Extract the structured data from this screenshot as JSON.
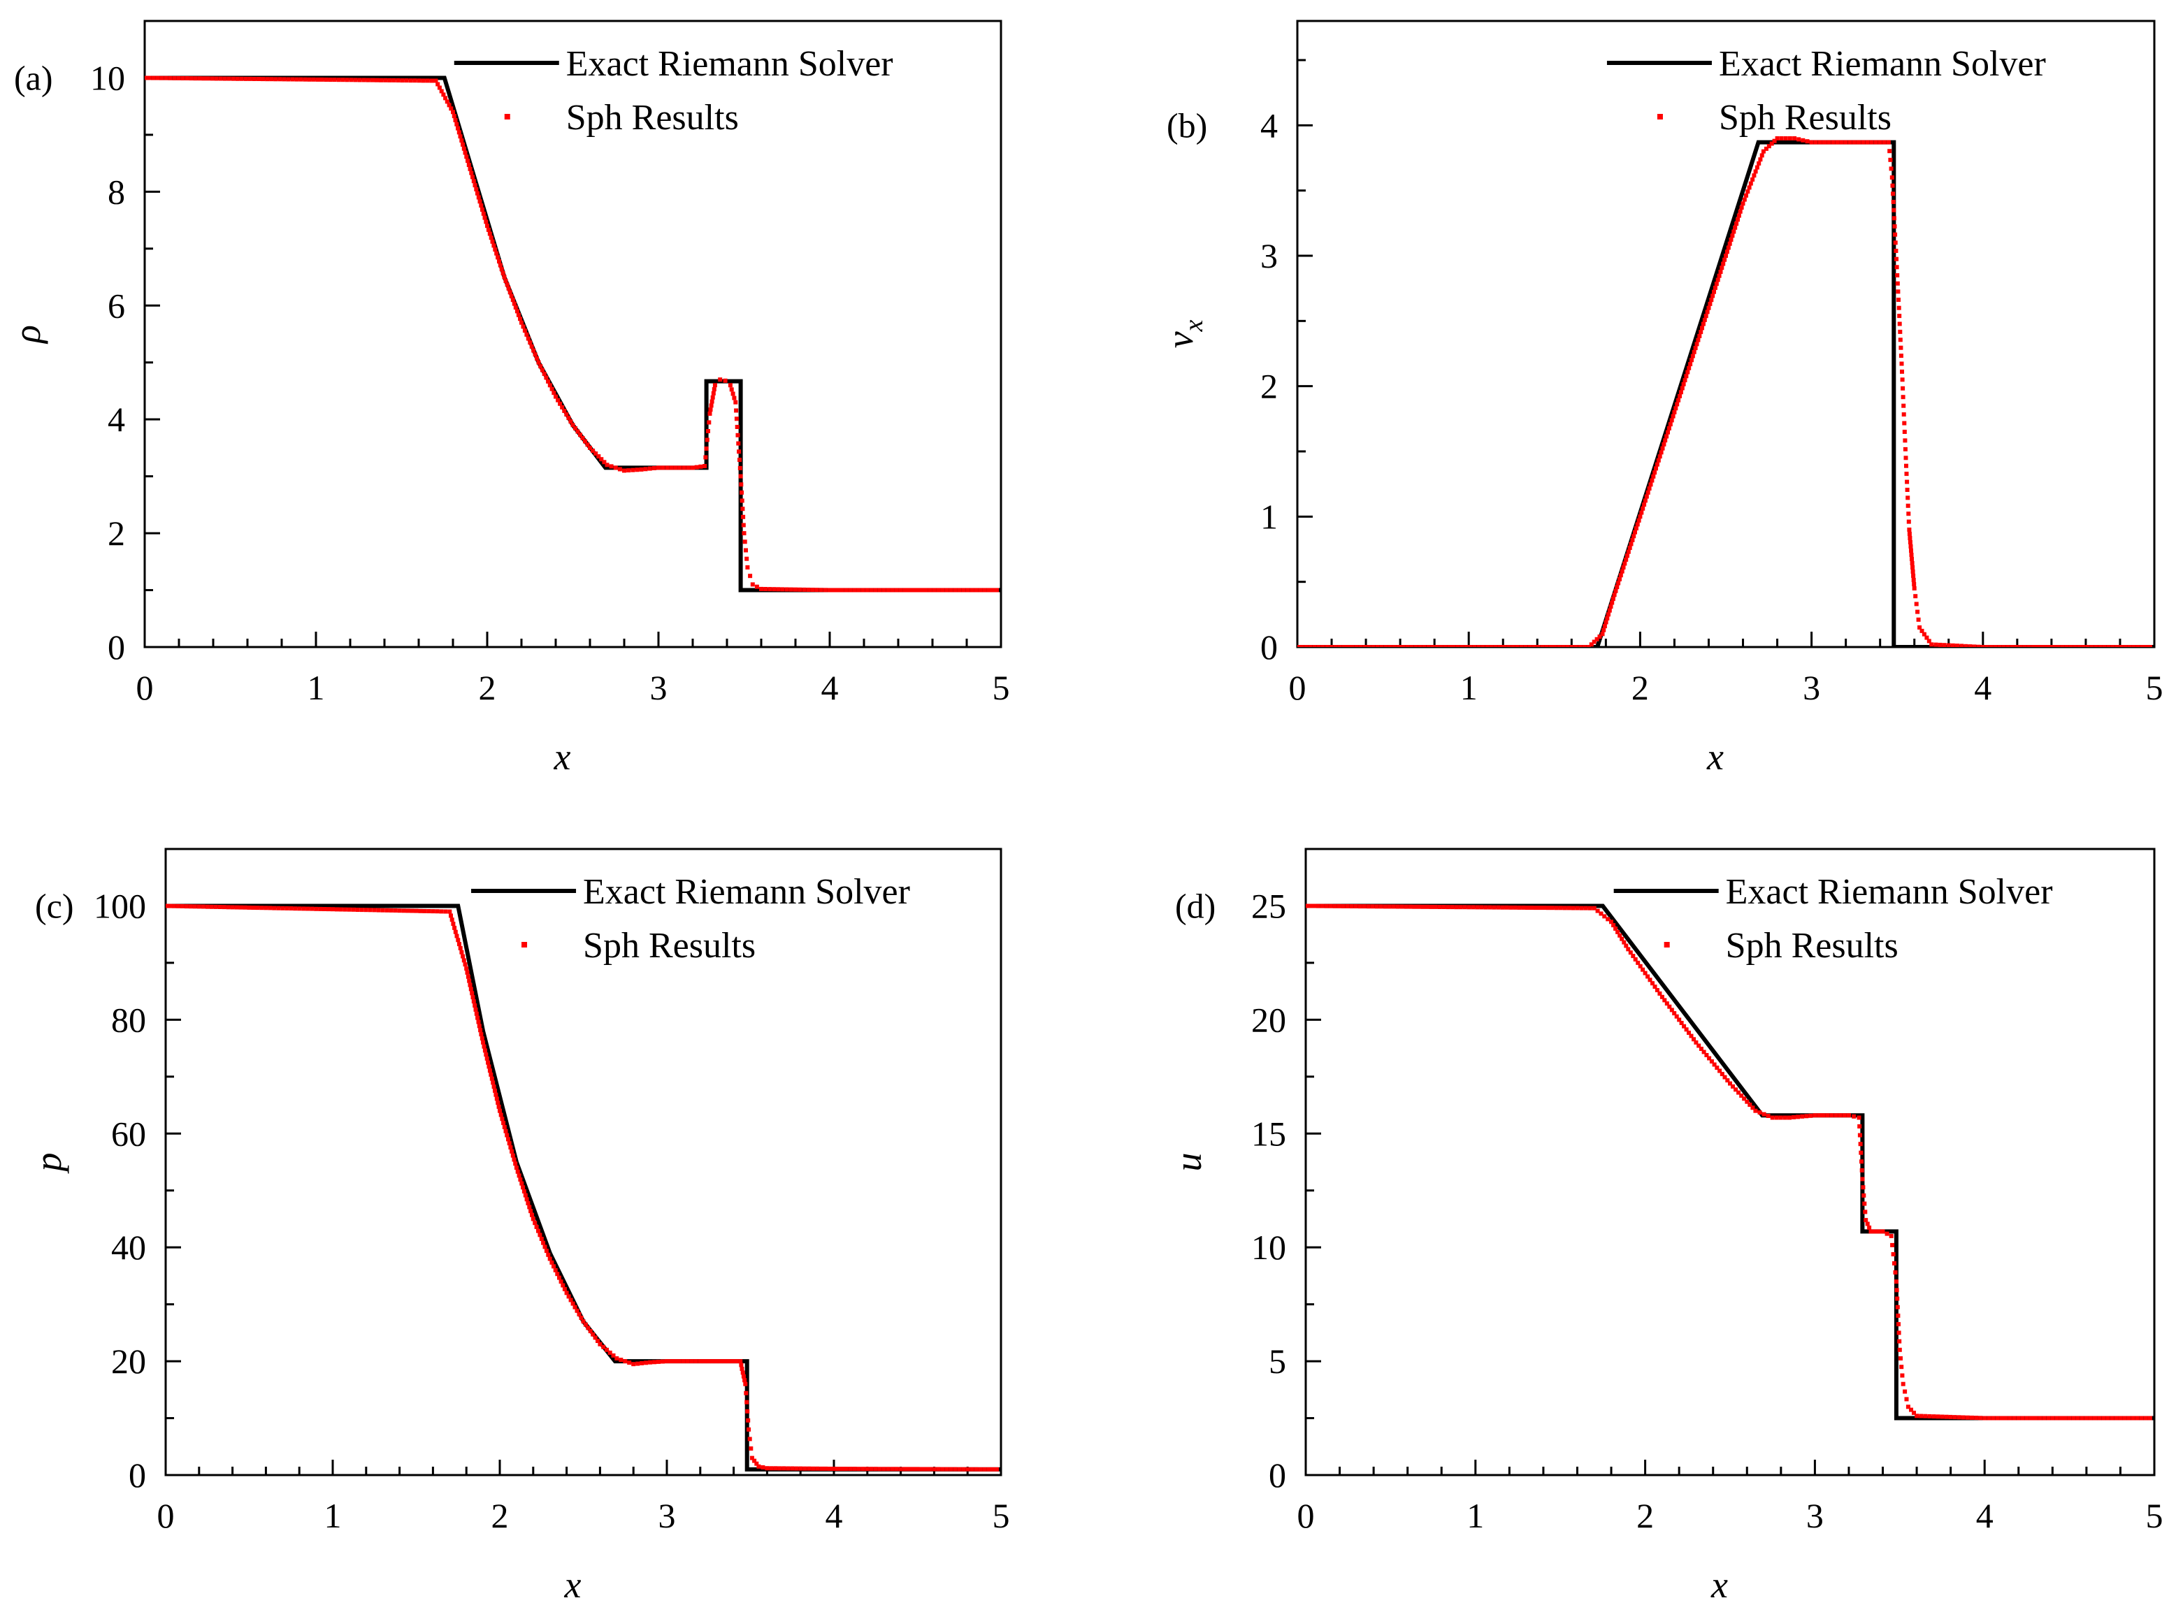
{
  "chart_data": [
    {
      "type": "line",
      "panel_label": "(a)",
      "xlabel": "x",
      "ylabel": "ρ",
      "ylabel_sub": "",
      "xlim": [
        0,
        5
      ],
      "ylim": [
        0,
        11
      ],
      "xticks": [
        0,
        1,
        2,
        3,
        4,
        5
      ],
      "yticks": [
        0,
        2,
        4,
        6,
        8,
        10
      ],
      "legend": [
        "Exact Riemann Solver",
        "Sph Results"
      ],
      "legend_position": "top-right",
      "series": [
        {
          "name": "Exact Riemann Solver",
          "style": "line",
          "x": [
            0,
            1.75,
            1.9,
            2.1,
            2.3,
            2.5,
            2.69,
            3.28,
            3.28,
            3.48,
            3.48,
            5
          ],
          "y": [
            10,
            10,
            8.5,
            6.5,
            5.0,
            3.9,
            3.15,
            3.15,
            4.67,
            4.67,
            1.0,
            1.0
          ]
        },
        {
          "name": "Sph Results",
          "style": "dots",
          "x": [
            0,
            1.7,
            1.8,
            1.9,
            2.0,
            2.1,
            2.2,
            2.3,
            2.4,
            2.5,
            2.6,
            2.7,
            2.8,
            2.9,
            3.0,
            3.1,
            3.2,
            3.27,
            3.3,
            3.33,
            3.36,
            3.39,
            3.42,
            3.45,
            3.48,
            3.5,
            3.52,
            3.55,
            3.6,
            4.0,
            5.0
          ],
          "y": [
            10,
            9.95,
            9.4,
            8.4,
            7.4,
            6.5,
            5.7,
            5.0,
            4.4,
            3.9,
            3.5,
            3.2,
            3.1,
            3.12,
            3.15,
            3.15,
            3.15,
            3.18,
            4.1,
            4.6,
            4.7,
            4.68,
            4.6,
            4.3,
            3.0,
            2.0,
            1.4,
            1.1,
            1.02,
            1.0,
            1.0
          ]
        }
      ]
    },
    {
      "type": "line",
      "panel_label": "(b)",
      "xlabel": "x",
      "ylabel": "v",
      "ylabel_sub": "x",
      "xlim": [
        0,
        5
      ],
      "ylim": [
        0,
        4.8
      ],
      "xticks": [
        0,
        1,
        2,
        3,
        4,
        5
      ],
      "yticks": [
        0,
        1,
        2,
        3,
        4
      ],
      "legend": [
        "Exact Riemann Solver",
        "Sph Results"
      ],
      "legend_position": "top-right",
      "series": [
        {
          "name": "Exact Riemann Solver",
          "style": "line",
          "x": [
            0,
            1.75,
            2.69,
            3.48,
            3.48,
            5
          ],
          "y": [
            0,
            0,
            3.87,
            3.87,
            0,
            0
          ]
        },
        {
          "name": "Sph Results",
          "style": "dots",
          "x": [
            0,
            1.7,
            1.78,
            1.85,
            2.0,
            2.2,
            2.4,
            2.6,
            2.72,
            2.8,
            2.9,
            3.0,
            3.2,
            3.45,
            3.47,
            3.49,
            3.51,
            3.53,
            3.55,
            3.57,
            3.6,
            3.63,
            3.7,
            4.0,
            5.0
          ],
          "y": [
            0,
            0,
            0.1,
            0.4,
            1.0,
            1.8,
            2.6,
            3.4,
            3.8,
            3.9,
            3.9,
            3.87,
            3.87,
            3.87,
            3.6,
            3.1,
            2.6,
            2.05,
            1.45,
            0.9,
            0.45,
            0.15,
            0.02,
            0,
            0
          ]
        }
      ]
    },
    {
      "type": "line",
      "panel_label": "(c)",
      "xlabel": "x",
      "ylabel": "p",
      "ylabel_sub": "",
      "xlim": [
        0,
        5
      ],
      "ylim": [
        0,
        110
      ],
      "xticks": [
        0,
        1,
        2,
        3,
        4,
        5
      ],
      "yticks": [
        0,
        20,
        40,
        60,
        80,
        100
      ],
      "legend": [
        "Exact Riemann Solver",
        "Sph Results"
      ],
      "legend_position": "top-right",
      "series": [
        {
          "name": "Exact Riemann Solver",
          "style": "line",
          "x": [
            0,
            1.75,
            1.9,
            2.1,
            2.3,
            2.5,
            2.69,
            3.48,
            3.48,
            5
          ],
          "y": [
            100,
            100,
            78,
            55,
            39,
            27,
            20,
            20,
            1.0,
            1.0
          ]
        },
        {
          "name": "Sph Results",
          "style": "dots",
          "x": [
            0,
            1.7,
            1.8,
            1.9,
            2.0,
            2.1,
            2.2,
            2.3,
            2.4,
            2.5,
            2.6,
            2.7,
            2.8,
            2.9,
            3.0,
            3.2,
            3.44,
            3.47,
            3.49,
            3.51,
            3.55,
            3.6,
            4.0,
            5.0
          ],
          "y": [
            100,
            99,
            89,
            76,
            64,
            54,
            45,
            38,
            32,
            27,
            23,
            20.5,
            19.5,
            19.8,
            20,
            20,
            20,
            16,
            8,
            3,
            1.5,
            1.2,
            1.1,
            1.0
          ]
        }
      ]
    },
    {
      "type": "line",
      "panel_label": "(d)",
      "xlabel": "x",
      "ylabel": "u",
      "ylabel_sub": "",
      "xlim": [
        0,
        5
      ],
      "ylim": [
        0,
        27.5
      ],
      "xticks": [
        0,
        1,
        2,
        3,
        4,
        5
      ],
      "yticks": [
        0,
        5,
        10,
        15,
        20,
        25
      ],
      "legend": [
        "Exact Riemann Solver",
        "Sph Results"
      ],
      "legend_position": "top-right",
      "series": [
        {
          "name": "Exact Riemann Solver",
          "style": "line",
          "x": [
            0,
            1.75,
            2.69,
            3.28,
            3.28,
            3.48,
            3.48,
            5
          ],
          "y": [
            25,
            25,
            15.8,
            15.8,
            10.7,
            10.7,
            2.5,
            2.5
          ]
        },
        {
          "name": "Sph Results",
          "style": "dots",
          "x": [
            0,
            1.7,
            1.8,
            1.9,
            2.1,
            2.3,
            2.5,
            2.65,
            2.75,
            2.85,
            3.0,
            3.2,
            3.26,
            3.28,
            3.3,
            3.33,
            3.4,
            3.45,
            3.48,
            3.5,
            3.52,
            3.55,
            3.6,
            4.0,
            5.0
          ],
          "y": [
            25,
            24.9,
            24.3,
            23.1,
            21.0,
            19.0,
            17.2,
            16.0,
            15.7,
            15.7,
            15.8,
            15.8,
            15.7,
            13.0,
            11.2,
            10.7,
            10.7,
            10.5,
            8.5,
            5.5,
            4.0,
            3.0,
            2.6,
            2.5,
            2.5
          ]
        }
      ]
    }
  ]
}
